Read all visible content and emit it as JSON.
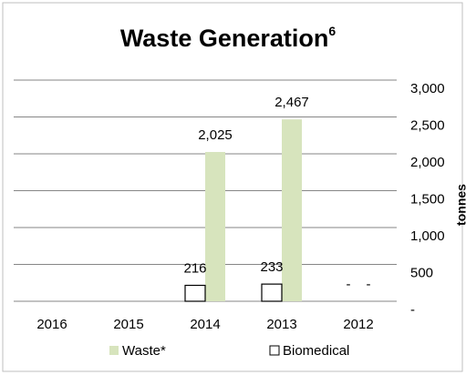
{
  "chart_data": {
    "type": "bar",
    "title": "Waste Generation",
    "title_superscript": "6",
    "y_axis_label": "tonnes",
    "categories": [
      "2016",
      "2015",
      "2014",
      "2013",
      "2012"
    ],
    "series": [
      {
        "name": "Waste*",
        "color": "#d7e4bd",
        "values": [
          null,
          null,
          2025,
          2467,
          0
        ],
        "value_labels": [
          null,
          null,
          "2,025",
          "2,467",
          "-"
        ]
      },
      {
        "name": "Biomedical",
        "color": "#ffffff",
        "values": [
          null,
          null,
          216,
          233,
          0
        ],
        "value_labels": [
          null,
          null,
          "216",
          "233",
          "-"
        ]
      }
    ],
    "ylim": [
      0,
      3000
    ],
    "yticks": [
      {
        "value": 0,
        "label": "-"
      },
      500,
      {
        "value": 1000,
        "label": "1,000"
      },
      {
        "value": 1500,
        "label": "1,500"
      },
      {
        "value": 2000,
        "label": "2,000"
      },
      {
        "value": 2500,
        "label": "2,500"
      },
      {
        "value": 3000,
        "label": "3,000"
      }
    ],
    "grid": true,
    "legend": "bottom"
  }
}
